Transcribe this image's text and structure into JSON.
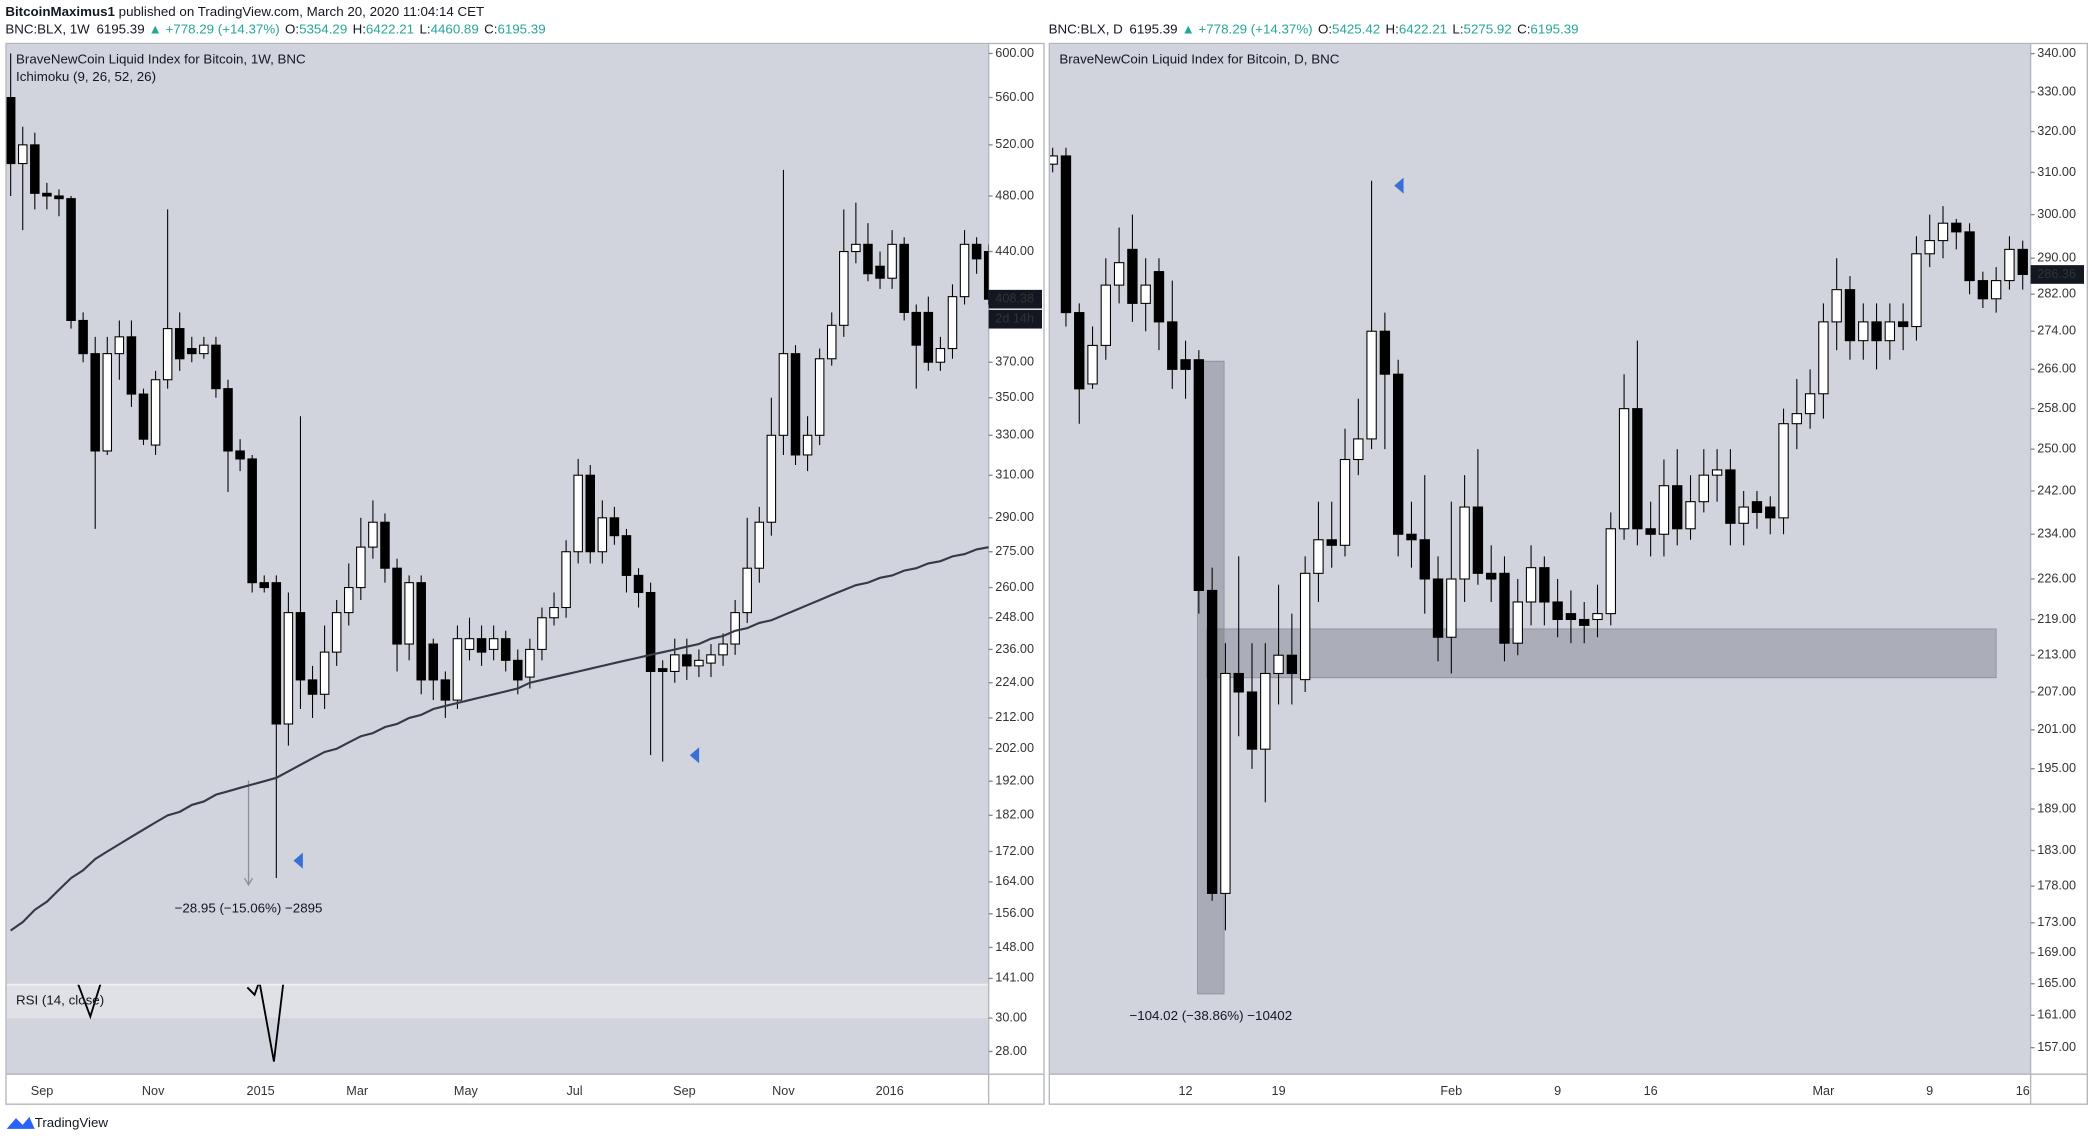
{
  "header": {
    "author": "BitcoinMaximus1",
    "text": "published on TradingView.com, March 20, 2020 11:04:14 CET"
  },
  "footer": {
    "brand": "TradingView"
  },
  "chart_data": [
    {
      "type": "candlestick",
      "title": "BraveNewCoin Liquid Index for Bitcoin, 1W, BNC",
      "indicator": "Ichimoku (9, 26, 52, 26)",
      "legend": {
        "symbol": "BNC:BLX, 1W",
        "price": "6195.39",
        "change": "▲ +778.29 (+14.37%)",
        "ohlc": [
          {
            "label": "O:",
            "value": "5354.29"
          },
          {
            "label": "H:",
            "value": "6422.21"
          },
          {
            "label": "L:",
            "value": "4460.89"
          },
          {
            "label": "C:",
            "value": "6195.39"
          }
        ]
      },
      "log_scale": true,
      "grid": false,
      "up_color": "#ffffff",
      "down_color": "#000000",
      "open": [
        560,
        505,
        520,
        482,
        480,
        478,
        395,
        375,
        322,
        375,
        385,
        352,
        325,
        360,
        390,
        378,
        375,
        380,
        355,
        322,
        318,
        262,
        262,
        210,
        250,
        225,
        220,
        235,
        250,
        260,
        277,
        288,
        268,
        238,
        262,
        238,
        225,
        218,
        236,
        240,
        236,
        240,
        232,
        226,
        236,
        248,
        252,
        275,
        310,
        275,
        290,
        282,
        265,
        258,
        229,
        228,
        234,
        230,
        231,
        234,
        238,
        250,
        268,
        288,
        330,
        375,
        320,
        330,
        372,
        392,
        440,
        445,
        430,
        422,
        445,
        400,
        400,
        370,
        378,
        410,
        445,
        440
      ],
      "high": [
        600,
        535,
        530,
        490,
        485,
        480,
        400,
        385,
        385,
        395,
        395,
        355,
        365,
        470,
        400,
        385,
        385,
        385,
        360,
        328,
        320,
        265,
        265,
        258,
        340,
        230,
        245,
        255,
        270,
        290,
        298,
        292,
        272,
        265,
        265,
        240,
        228,
        245,
        248,
        245,
        245,
        243,
        236,
        240,
        252,
        258,
        280,
        318,
        315,
        298,
        295,
        285,
        268,
        262,
        232,
        240,
        240,
        236,
        238,
        242,
        255,
        290,
        295,
        350,
        500,
        380,
        340,
        378,
        400,
        470,
        475,
        460,
        440,
        455,
        450,
        405,
        410,
        385,
        418,
        455,
        450,
        445
      ],
      "low": [
        480,
        455,
        470,
        470,
        465,
        390,
        370,
        285,
        320,
        360,
        345,
        325,
        320,
        355,
        365,
        370,
        372,
        350,
        302,
        312,
        258,
        258,
        165,
        203,
        215,
        212,
        215,
        230,
        245,
        255,
        272,
        262,
        228,
        232,
        220,
        218,
        212,
        215,
        232,
        230,
        232,
        228,
        220,
        222,
        232,
        245,
        248,
        270,
        270,
        270,
        278,
        258,
        252,
        200,
        198,
        224,
        225,
        226,
        226,
        230,
        234,
        246,
        262,
        282,
        320,
        315,
        312,
        325,
        368,
        385,
        432,
        420,
        415,
        415,
        395,
        355,
        365,
        365,
        372,
        405,
        425,
        405
      ],
      "close": [
        505,
        520,
        482,
        480,
        478,
        395,
        375,
        322,
        375,
        385,
        352,
        328,
        360,
        390,
        372,
        375,
        380,
        355,
        322,
        318,
        262,
        260,
        210,
        250,
        225,
        220,
        235,
        250,
        260,
        277,
        288,
        268,
        238,
        262,
        225,
        225,
        218,
        240,
        240,
        235,
        240,
        232,
        225,
        236,
        248,
        252,
        275,
        310,
        275,
        290,
        282,
        265,
        258,
        228,
        228,
        234,
        230,
        232,
        234,
        238,
        250,
        268,
        288,
        330,
        375,
        320,
        330,
        372,
        392,
        440,
        445,
        425,
        422,
        445,
        400,
        380,
        370,
        378,
        410,
        445,
        435,
        408.38
      ],
      "countdown": "2d 14h",
      "ma": {
        "color": "#363a45",
        "values": [
          152,
          154,
          157,
          159,
          162,
          165,
          167,
          170,
          172,
          174,
          176,
          178,
          180,
          182,
          183,
          185,
          186,
          188,
          189,
          190,
          191,
          192,
          193,
          195,
          197,
          199,
          201,
          202,
          204,
          206,
          207,
          209,
          210,
          212,
          213,
          215,
          216,
          217,
          218,
          219,
          220,
          221,
          222,
          224,
          225,
          226,
          227,
          228,
          229,
          230,
          231,
          232,
          233,
          234,
          235,
          236,
          237,
          238,
          240,
          241,
          243,
          244,
          246,
          247,
          249,
          251,
          253,
          255,
          257,
          259,
          261,
          262,
          264,
          265,
          267,
          268,
          270,
          271,
          273,
          274,
          276,
          277
        ]
      },
      "ylim": [
        139.6,
        608.8
      ],
      "yticks": [
        {
          "value": 600,
          "label": "600.00"
        },
        {
          "value": 560,
          "label": "560.00"
        },
        {
          "value": 520,
          "label": "520.00"
        },
        {
          "value": 480,
          "label": "480.00"
        },
        {
          "value": 440,
          "label": "440.00"
        },
        {
          "value": 370,
          "label": "370.00"
        },
        {
          "value": 350,
          "label": "350.00"
        },
        {
          "value": 330,
          "label": "330.00"
        },
        {
          "value": 310,
          "label": "310.00"
        },
        {
          "value": 290,
          "label": "290.00"
        },
        {
          "value": 275,
          "label": "275.00"
        },
        {
          "value": 260,
          "label": "260.00"
        },
        {
          "value": 248,
          "label": "248.00"
        },
        {
          "value": 236,
          "label": "236.00"
        },
        {
          "value": 224,
          "label": "224.00"
        },
        {
          "value": 212,
          "label": "212.00"
        },
        {
          "value": 202,
          "label": "202.00"
        },
        {
          "value": 192,
          "label": "192.00"
        },
        {
          "value": 182,
          "label": "182.00"
        },
        {
          "value": 172,
          "label": "172.00"
        },
        {
          "value": 164,
          "label": "164.00"
        },
        {
          "value": 156,
          "label": "156.00"
        },
        {
          "value": 148,
          "label": "148.00"
        },
        {
          "value": 141,
          "label": "141.00"
        }
      ],
      "xticks": [
        {
          "value": 2.6,
          "label": "Sep"
        },
        {
          "value": 11.8,
          "label": "Nov"
        },
        {
          "value": 20.7,
          "label": "2015"
        },
        {
          "value": 28.7,
          "label": "Mar"
        },
        {
          "value": 37.7,
          "label": "May"
        },
        {
          "value": 46.7,
          "label": "Jul"
        },
        {
          "value": 55.8,
          "label": "Sep"
        },
        {
          "value": 64,
          "label": "Nov"
        },
        {
          "value": 72.8,
          "label": "2016"
        }
      ],
      "measure": {
        "at": 19.7,
        "from": 192.2,
        "to": 163.25,
        "label": "−28.95 (−15.06%) −2895"
      },
      "rsi": {
        "title": "RSI (14, close)",
        "color": "#000000",
        "x": [
          5.5,
          6.6,
          7.5,
          14,
          19.6,
          20.2,
          20.6,
          21.8,
          22.6
        ],
        "values": [
          32.2,
          30.1,
          32.2,
          null,
          31.84,
          31.4,
          32.2,
          27.4,
          32.2
        ],
        "ylim": [
          26.64,
          32
        ],
        "yticks": [
          {
            "value": 30,
            "label": "30.00"
          },
          {
            "value": 28,
            "label": "28.00"
          }
        ]
      }
    },
    {
      "type": "candlestick",
      "title": "BraveNewCoin Liquid Index for Bitcoin, D, BNC",
      "legend": {
        "symbol": "BNC:BLX, D",
        "price": "6195.39",
        "change": "▲ +778.29 (+14.37%)",
        "ohlc": [
          {
            "label": "O:",
            "value": "5425.42"
          },
          {
            "label": "H:",
            "value": "6422.21"
          },
          {
            "label": "L:",
            "value": "5275.92"
          },
          {
            "label": "C:",
            "value": "6195.39"
          }
        ]
      },
      "log_scale": true,
      "grid": false,
      "up_color": "#ffffff",
      "down_color": "#000000",
      "open": [
        312,
        314,
        278,
        263,
        271,
        284,
        292,
        280,
        287,
        276,
        268,
        268,
        224,
        177,
        210,
        207,
        198,
        210,
        213,
        209,
        227,
        233,
        232,
        248,
        252,
        274,
        265,
        234,
        233,
        226,
        216,
        226,
        239,
        227,
        227,
        215,
        222,
        228,
        222,
        220,
        219,
        219,
        220,
        235,
        258,
        235,
        234,
        243,
        235,
        240,
        245,
        246,
        236,
        240,
        239,
        237,
        255,
        257,
        261,
        276,
        283,
        272,
        276,
        272,
        276,
        275,
        291,
        294,
        298,
        296,
        285,
        281,
        285,
        292
      ],
      "high": [
        316,
        316,
        280,
        275,
        290,
        297,
        300,
        290,
        290,
        285,
        272,
        270,
        228,
        215,
        230,
        215,
        215,
        225,
        220,
        230,
        240,
        240,
        254,
        260,
        308,
        278,
        268,
        240,
        245,
        230,
        240,
        245,
        250,
        232,
        230,
        226,
        232,
        230,
        226,
        224,
        222,
        225,
        238,
        265,
        272,
        240,
        248,
        250,
        245,
        250,
        250,
        250,
        242,
        242,
        241,
        258,
        264,
        266,
        280,
        290,
        286,
        280,
        280,
        280,
        280,
        295,
        300,
        302,
        299,
        298,
        287,
        288,
        295,
        294
      ],
      "low": [
        310,
        275,
        255,
        262,
        268,
        280,
        276,
        274,
        270,
        262,
        260,
        220,
        176,
        172,
        200,
        195,
        190,
        205,
        205,
        207,
        222,
        228,
        230,
        245,
        250,
        250,
        230,
        228,
        220,
        212,
        210,
        222,
        225,
        222,
        212,
        213,
        218,
        218,
        216,
        215,
        215,
        216,
        218,
        233,
        232,
        230,
        230,
        232,
        233,
        238,
        240,
        232,
        232,
        235,
        234,
        234,
        250,
        254,
        256,
        270,
        268,
        268,
        266,
        268,
        270,
        272,
        288,
        290,
        292,
        282,
        279,
        278,
        283,
        283
      ],
      "close": [
        314,
        278,
        262,
        271,
        284,
        289,
        280,
        284,
        276,
        266,
        266,
        224,
        177,
        210,
        207,
        198,
        210,
        213,
        210,
        227,
        233,
        232,
        248,
        252,
        274,
        265,
        234,
        233,
        226,
        216,
        226,
        239,
        227,
        226,
        215,
        222,
        228,
        222,
        219,
        219,
        218,
        220,
        235,
        258,
        235,
        234,
        243,
        235,
        240,
        245,
        246,
        236,
        239,
        238,
        237,
        255,
        257,
        261,
        276,
        283,
        272,
        276,
        272,
        276,
        275,
        291,
        294,
        298,
        296,
        285,
        281,
        285,
        292,
        286.36
      ],
      "ylim": [
        153.8,
        342.5
      ],
      "yticks": [
        {
          "value": 340,
          "label": "340.00"
        },
        {
          "value": 330,
          "label": "330.00"
        },
        {
          "value": 320,
          "label": "320.00"
        },
        {
          "value": 310,
          "label": "310.00"
        },
        {
          "value": 300,
          "label": "300.00"
        },
        {
          "value": 290,
          "label": "290.00"
        },
        {
          "value": 282,
          "label": "282.00"
        },
        {
          "value": 274,
          "label": "274.00"
        },
        {
          "value": 266,
          "label": "266.00"
        },
        {
          "value": 258,
          "label": "258.00"
        },
        {
          "value": 250,
          "label": "250.00"
        },
        {
          "value": 242,
          "label": "242.00"
        },
        {
          "value": 234,
          "label": "234.00"
        },
        {
          "value": 226,
          "label": "226.00"
        },
        {
          "value": 219,
          "label": "219.00"
        },
        {
          "value": 213,
          "label": "213.00"
        },
        {
          "value": 207,
          "label": "207.00"
        },
        {
          "value": 201,
          "label": "201.00"
        },
        {
          "value": 195,
          "label": "195.00"
        },
        {
          "value": 189,
          "label": "189.00"
        },
        {
          "value": 183,
          "label": "183.00"
        },
        {
          "value": 178,
          "label": "178.00"
        },
        {
          "value": 173,
          "label": "173.00"
        },
        {
          "value": 169,
          "label": "169.00"
        },
        {
          "value": 165,
          "label": "165.00"
        },
        {
          "value": 161,
          "label": "161.00"
        },
        {
          "value": 157,
          "label": "157.00"
        }
      ],
      "xticks": [
        {
          "value": 10,
          "label": "12"
        },
        {
          "value": 17,
          "label": "19"
        },
        {
          "value": 30,
          "label": "Feb"
        },
        {
          "value": 38,
          "label": "9"
        },
        {
          "value": 45,
          "label": "16"
        },
        {
          "value": 58,
          "label": "Mar"
        },
        {
          "value": 66,
          "label": "9"
        },
        {
          "value": 73,
          "label": "16"
        }
      ],
      "zone": {
        "start": 11.6,
        "end": 71,
        "low": 209.3,
        "high": 217.4
      },
      "measure": {
        "start": 10.9,
        "end": 12.9,
        "from": 267.7,
        "to": 163.7,
        "label": "−104.02 (−38.86%) −10402"
      }
    }
  ]
}
